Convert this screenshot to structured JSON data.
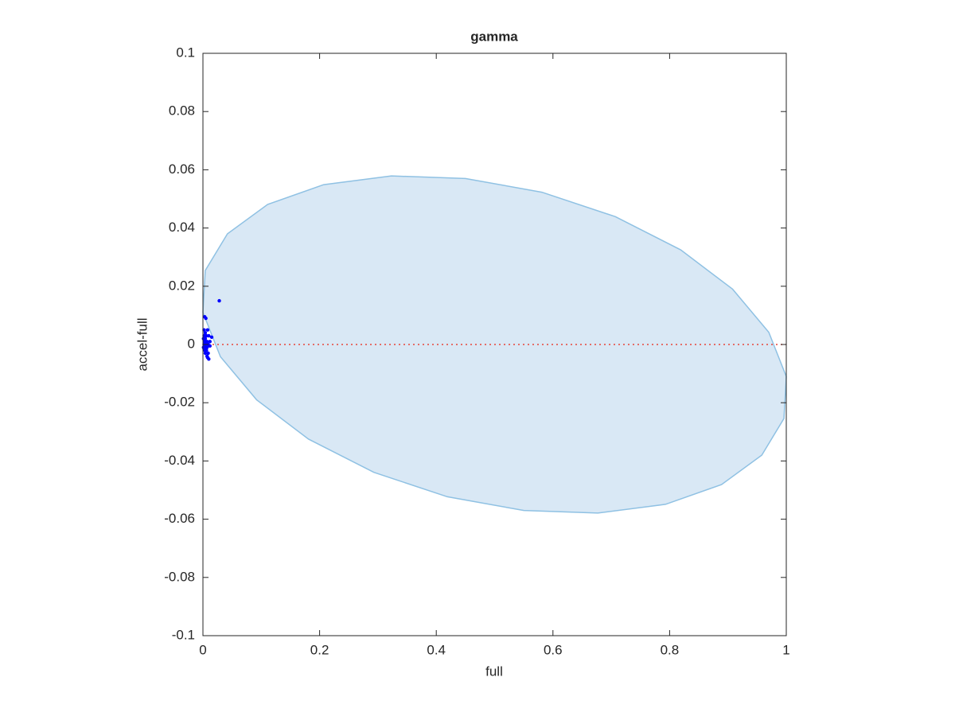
{
  "chart_data": {
    "type": "scatter",
    "title": "gamma",
    "x_label": "full",
    "y_label": "accel-full",
    "xlim": [
      0,
      1
    ],
    "ylim": [
      -0.1,
      0.1
    ],
    "xticks": [
      0,
      0.2,
      0.4,
      0.6,
      0.8,
      1
    ],
    "yticks": [
      -0.1,
      -0.08,
      -0.06,
      -0.04,
      -0.02,
      0,
      0.02,
      0.04,
      0.06,
      0.08,
      0.1
    ],
    "grid": false,
    "series": [
      {
        "type": "area",
        "color": "#d9e8f5",
        "edge_color": "#8fc1e3",
        "x": [
          1,
          0.97,
          0.908,
          0.819,
          0.707,
          0.581,
          0.45,
          0.323,
          0.207,
          0.111,
          0.042,
          0.004,
          0,
          0.03,
          0.092,
          0.181,
          0.293,
          0.419,
          0.55,
          0.677,
          0.793,
          0.889,
          0.958,
          0.996
        ],
        "values": [
          -0.011,
          0.0042,
          0.019,
          0.0325,
          0.0439,
          0.0523,
          0.057,
          0.0579,
          0.0549,
          0.0481,
          0.038,
          0.0254,
          0.011,
          -0.0042,
          -0.019,
          -0.0325,
          -0.0439,
          -0.0523,
          -0.057,
          -0.0579,
          -0.0549,
          -0.0481,
          -0.038,
          -0.0254
        ]
      },
      {
        "type": "line",
        "color": "#e8443a",
        "dash": "dotted",
        "x": [
          0,
          1
        ],
        "values": [
          0,
          0
        ]
      },
      {
        "type": "scatter",
        "color": "#0000ff",
        "x": [
          0.028,
          0.003,
          0.005,
          0.002,
          0.008,
          0.004,
          0.002,
          0.006,
          0.01,
          0.015,
          0.001,
          0.004,
          0.007,
          0.003,
          0.012,
          0.002,
          0.005,
          0.009,
          0.001,
          0.004,
          0.007,
          0.012,
          0.003,
          0.006,
          0.009,
          0.004,
          0.007,
          0.01,
          0.008,
          0.002
        ],
        "values": [
          0.015,
          0.0095,
          0.009,
          0.005,
          0.005,
          0.004,
          0.003,
          0.003,
          0.003,
          0.0025,
          0.002,
          0.002,
          0.001,
          0.001,
          0.001,
          0,
          0,
          0,
          -0.001,
          -0.001,
          -0.001,
          -0.0005,
          -0.002,
          -0.002,
          -0.003,
          -0.003,
          -0.004,
          -0.005,
          -0.0045,
          -0.0015
        ]
      }
    ]
  }
}
